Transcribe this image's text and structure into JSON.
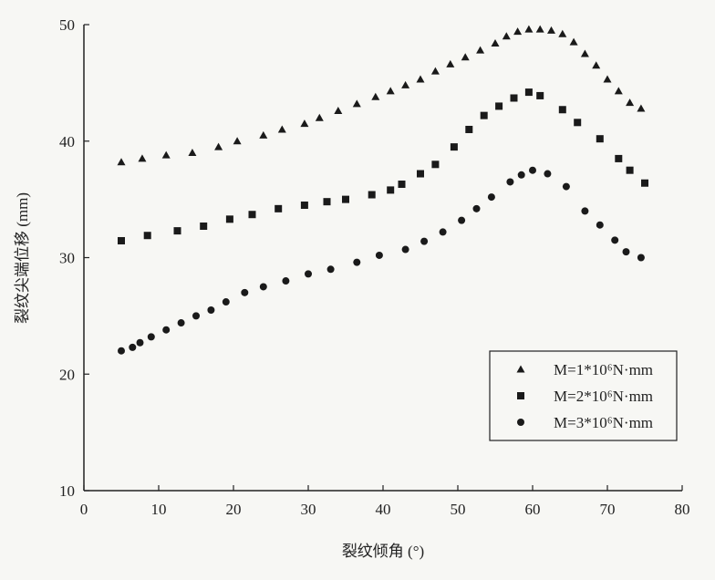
{
  "chart_data": {
    "type": "scatter",
    "x_label": "裂纹倾角 (°)",
    "y_label": "裂纹尖端位移 (mm)",
    "xlim": [
      0,
      80
    ],
    "xticks": [
      0,
      10,
      20,
      30,
      40,
      50,
      60,
      70,
      80
    ],
    "ylim": [
      10,
      50
    ],
    "yticks": [
      10,
      20,
      30,
      40,
      50
    ],
    "grid": false,
    "legend": "lower right",
    "series": [
      {
        "name": "M=1*10⁶N·mm",
        "color": "#1a1a1a",
        "marker": "triangle",
        "x": [
          5,
          7.8,
          11,
          14.5,
          18,
          20.5,
          24,
          26.5,
          29.5,
          31.5,
          34,
          36.5,
          39,
          41,
          43,
          45,
          47,
          49,
          51,
          53,
          55,
          56.5,
          58,
          59.5,
          61,
          62.5,
          64,
          65.5,
          67,
          68.5,
          70,
          71.5,
          73,
          74.5
        ],
        "values": [
          38.2,
          38.5,
          38.8,
          39,
          39.5,
          40,
          40.5,
          41,
          41.5,
          42,
          42.6,
          43.2,
          43.8,
          44.3,
          44.8,
          45.3,
          46,
          46.6,
          47.2,
          47.8,
          48.4,
          49,
          49.4,
          49.6,
          49.6,
          49.5,
          49.2,
          48.5,
          47.5,
          46.5,
          45.3,
          44.3,
          43.3,
          42.8
        ]
      },
      {
        "name": "M=2*10⁶N·mm",
        "color": "#1a1a1a",
        "marker": "square",
        "x": [
          5,
          8.5,
          12.5,
          16,
          19.5,
          22.5,
          26,
          29.5,
          32.5,
          35,
          38.5,
          41,
          42.5,
          45,
          47,
          49.5,
          51.5,
          53.5,
          55.5,
          57.5,
          59.5,
          61,
          64,
          66,
          69,
          71.5,
          73,
          75
        ],
        "values": [
          31.45,
          31.9,
          32.3,
          32.7,
          33.3,
          33.7,
          34.2,
          34.5,
          34.8,
          35,
          35.4,
          35.8,
          36.3,
          37.2,
          38,
          39.5,
          41,
          42.2,
          43,
          43.7,
          44.2,
          43.9,
          42.7,
          41.6,
          40.2,
          38.5,
          37.5,
          36.4
        ]
      },
      {
        "name": "M=3*10⁶N·mm",
        "color": "#1a1a1a",
        "marker": "circle",
        "x": [
          5,
          6.5,
          7.5,
          9,
          11,
          13,
          15,
          17,
          19,
          21.5,
          24,
          27,
          30,
          33,
          36.5,
          39.5,
          43,
          45.5,
          48,
          50.5,
          52.5,
          54.5,
          57,
          58.5,
          60,
          62,
          64.5,
          67,
          69,
          71,
          72.5,
          74.5
        ],
        "values": [
          22,
          22.3,
          22.7,
          23.2,
          23.8,
          24.4,
          25,
          25.5,
          26.2,
          27,
          27.5,
          28,
          28.6,
          29,
          29.6,
          30.2,
          30.7,
          31.4,
          32.2,
          33.2,
          34.2,
          35.2,
          36.5,
          37.1,
          37.5,
          37.2,
          36.1,
          34,
          32.8,
          31.5,
          30.5,
          30
        ]
      }
    ]
  }
}
